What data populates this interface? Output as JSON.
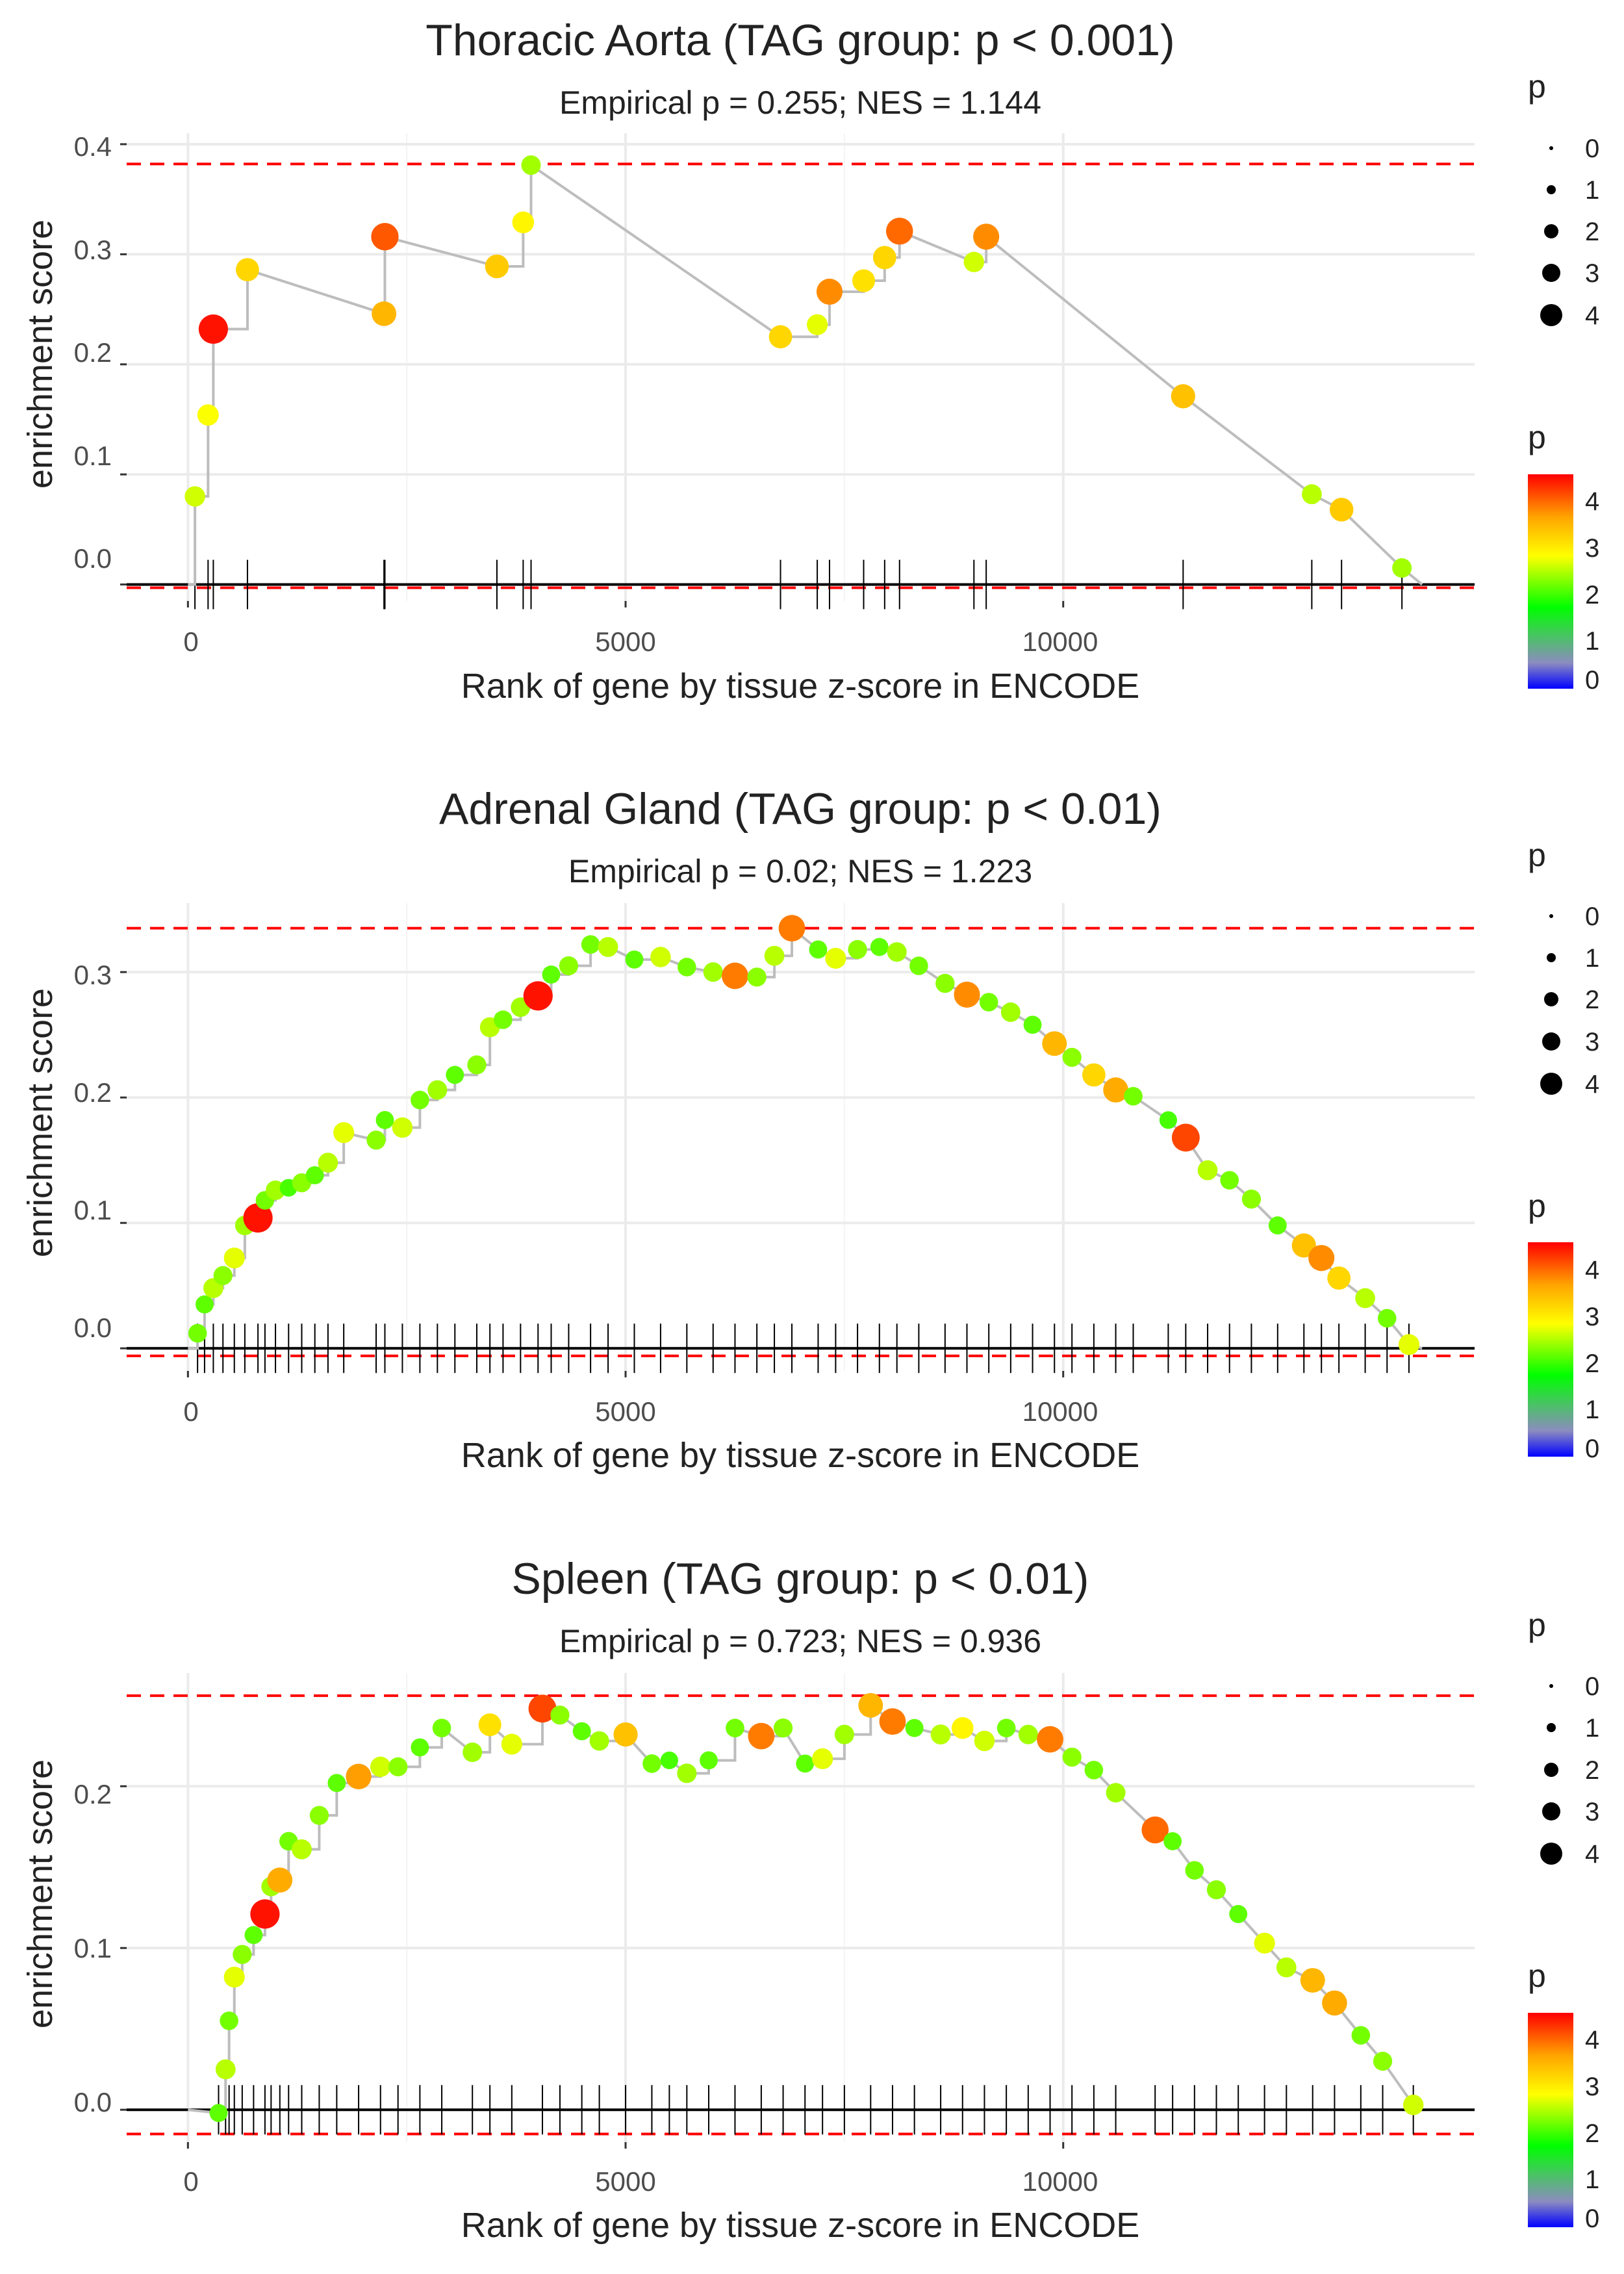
{
  "legend": {
    "size_title": "p",
    "size_labels": [
      "0",
      "1",
      "2",
      "3",
      "4"
    ],
    "color_title": "p",
    "color_labels": [
      "4",
      "3",
      "2",
      "1",
      "0"
    ],
    "color_scale": [
      "#0000ff",
      "#8c8cc0",
      "#00ff00",
      "#ffff00",
      "#ffa500",
      "#ff0000"
    ]
  },
  "colors": {
    "es_line": "#bdbdbd",
    "threshold_line": "#ff0000",
    "hit_tick": "#000000",
    "grid": "#ebebeb"
  },
  "chart_data": [
    {
      "type": "scatter",
      "title": "Thoracic Aorta (TAG group: p < 0.001)",
      "subtitle": "Empirical p = 0.255; NES = 1.144",
      "xlabel": "Rank of gene by tissue z-score in ENCODE",
      "ylabel": "enrichment score",
      "xlim": [
        -700,
        14700
      ],
      "ylim": [
        -0.015,
        0.41
      ],
      "xticks": [
        0,
        5000,
        10000
      ],
      "xtick_labels": [
        "0",
        "5000",
        "10000"
      ],
      "yticks": [
        0.0,
        0.1,
        0.2,
        0.3,
        0.4
      ],
      "ytick_labels": [
        "0.0",
        "0.1",
        "0.2",
        "0.3",
        "0.4"
      ],
      "max_es": 0.382,
      "min_es": -0.003,
      "points": [
        {
          "x": 80,
          "y": 0.08,
          "p": 2.7
        },
        {
          "x": 230,
          "y": 0.154,
          "p": 2.9
        },
        {
          "x": 290,
          "y": 0.232,
          "p": 4.6
        },
        {
          "x": 680,
          "y": 0.286,
          "p": 3.3
        },
        {
          "x": 2240,
          "y": 0.246,
          "p": 3.6
        },
        {
          "x": 2250,
          "y": 0.316,
          "p": 4.2
        },
        {
          "x": 3530,
          "y": 0.289,
          "p": 3.4
        },
        {
          "x": 3830,
          "y": 0.329,
          "p": 3.0
        },
        {
          "x": 3920,
          "y": 0.381,
          "p": 2.5
        },
        {
          "x": 6770,
          "y": 0.225,
          "p": 3.3
        },
        {
          "x": 7190,
          "y": 0.236,
          "p": 2.8
        },
        {
          "x": 7330,
          "y": 0.266,
          "p": 3.9
        },
        {
          "x": 7720,
          "y": 0.276,
          "p": 3.2
        },
        {
          "x": 7960,
          "y": 0.297,
          "p": 3.3
        },
        {
          "x": 8130,
          "y": 0.321,
          "p": 4.1
        },
        {
          "x": 8980,
          "y": 0.293,
          "p": 2.7
        },
        {
          "x": 9120,
          "y": 0.316,
          "p": 3.9
        },
        {
          "x": 11370,
          "y": 0.171,
          "p": 3.5
        },
        {
          "x": 12840,
          "y": 0.082,
          "p": 2.6
        },
        {
          "x": 13180,
          "y": 0.068,
          "p": 3.4
        },
        {
          "x": 13870,
          "y": 0.015,
          "p": 2.5
        }
      ]
    },
    {
      "type": "scatter",
      "title": "Adrenal Gland (TAG group: p < 0.01)",
      "subtitle": "Empirical p = 0.02; NES = 1.223",
      "xlabel": "Rank of gene by tissue z-score in ENCODE",
      "ylabel": "enrichment score",
      "xlim": [
        -700,
        14700
      ],
      "ylim": [
        -0.018,
        0.355
      ],
      "xticks": [
        0,
        5000,
        10000
      ],
      "xtick_labels": [
        "0",
        "5000",
        "10000"
      ],
      "yticks": [
        0.0,
        0.1,
        0.2,
        0.3
      ],
      "ytick_labels": [
        "0.0",
        "0.1",
        "0.2",
        "0.3"
      ],
      "max_es": 0.335,
      "min_es": -0.006,
      "points": [
        {
          "x": 110,
          "y": 0.012,
          "p": 2.3
        },
        {
          "x": 190,
          "y": 0.035,
          "p": 2.2
        },
        {
          "x": 290,
          "y": 0.048,
          "p": 2.6
        },
        {
          "x": 400,
          "y": 0.058,
          "p": 2.4
        },
        {
          "x": 530,
          "y": 0.072,
          "p": 2.8
        },
        {
          "x": 650,
          "y": 0.098,
          "p": 2.5
        },
        {
          "x": 800,
          "y": 0.104,
          "p": 4.6
        },
        {
          "x": 880,
          "y": 0.118,
          "p": 2.3
        },
        {
          "x": 1000,
          "y": 0.126,
          "p": 2.5
        },
        {
          "x": 1150,
          "y": 0.128,
          "p": 2.1
        },
        {
          "x": 1300,
          "y": 0.132,
          "p": 2.4
        },
        {
          "x": 1450,
          "y": 0.138,
          "p": 2.2
        },
        {
          "x": 1600,
          "y": 0.148,
          "p": 2.6
        },
        {
          "x": 1780,
          "y": 0.172,
          "p": 2.8
        },
        {
          "x": 2150,
          "y": 0.166,
          "p": 2.4
        },
        {
          "x": 2250,
          "y": 0.182,
          "p": 2.2
        },
        {
          "x": 2450,
          "y": 0.176,
          "p": 2.7
        },
        {
          "x": 2650,
          "y": 0.198,
          "p": 2.3
        },
        {
          "x": 2850,
          "y": 0.206,
          "p": 2.5
        },
        {
          "x": 3050,
          "y": 0.218,
          "p": 2.2
        },
        {
          "x": 3300,
          "y": 0.226,
          "p": 2.4
        },
        {
          "x": 3450,
          "y": 0.256,
          "p": 2.6
        },
        {
          "x": 3600,
          "y": 0.262,
          "p": 2.3
        },
        {
          "x": 3800,
          "y": 0.272,
          "p": 2.5
        },
        {
          "x": 4000,
          "y": 0.281,
          "p": 4.6
        },
        {
          "x": 4150,
          "y": 0.298,
          "p": 2.2
        },
        {
          "x": 4350,
          "y": 0.305,
          "p": 2.4
        },
        {
          "x": 4600,
          "y": 0.322,
          "p": 2.3
        },
        {
          "x": 4800,
          "y": 0.32,
          "p": 2.6
        },
        {
          "x": 5100,
          "y": 0.31,
          "p": 2.2
        },
        {
          "x": 5400,
          "y": 0.312,
          "p": 2.7
        },
        {
          "x": 5700,
          "y": 0.304,
          "p": 2.3
        },
        {
          "x": 6000,
          "y": 0.3,
          "p": 2.5
        },
        {
          "x": 6250,
          "y": 0.297,
          "p": 4.0
        },
        {
          "x": 6500,
          "y": 0.296,
          "p": 2.4
        },
        {
          "x": 6700,
          "y": 0.313,
          "p": 2.6
        },
        {
          "x": 6900,
          "y": 0.335,
          "p": 4.0
        },
        {
          "x": 7200,
          "y": 0.318,
          "p": 2.2
        },
        {
          "x": 7400,
          "y": 0.311,
          "p": 2.8
        },
        {
          "x": 7650,
          "y": 0.318,
          "p": 2.4
        },
        {
          "x": 7900,
          "y": 0.32,
          "p": 2.2
        },
        {
          "x": 8100,
          "y": 0.316,
          "p": 2.5
        },
        {
          "x": 8350,
          "y": 0.305,
          "p": 2.3
        },
        {
          "x": 8650,
          "y": 0.291,
          "p": 2.4
        },
        {
          "x": 8900,
          "y": 0.282,
          "p": 3.9
        },
        {
          "x": 9150,
          "y": 0.276,
          "p": 2.3
        },
        {
          "x": 9400,
          "y": 0.268,
          "p": 2.5
        },
        {
          "x": 9650,
          "y": 0.258,
          "p": 2.2
        },
        {
          "x": 9900,
          "y": 0.243,
          "p": 3.6
        },
        {
          "x": 10100,
          "y": 0.232,
          "p": 2.4
        },
        {
          "x": 10350,
          "y": 0.218,
          "p": 3.3
        },
        {
          "x": 10600,
          "y": 0.206,
          "p": 3.7
        },
        {
          "x": 10800,
          "y": 0.201,
          "p": 2.3
        },
        {
          "x": 11200,
          "y": 0.182,
          "p": 2.1
        },
        {
          "x": 11400,
          "y": 0.168,
          "p": 4.3
        },
        {
          "x": 11650,
          "y": 0.142,
          "p": 2.6
        },
        {
          "x": 11900,
          "y": 0.134,
          "p": 2.3
        },
        {
          "x": 12150,
          "y": 0.119,
          "p": 2.4
        },
        {
          "x": 12450,
          "y": 0.098,
          "p": 2.2
        },
        {
          "x": 12750,
          "y": 0.082,
          "p": 3.5
        },
        {
          "x": 12950,
          "y": 0.072,
          "p": 3.9
        },
        {
          "x": 13150,
          "y": 0.056,
          "p": 3.3
        },
        {
          "x": 13450,
          "y": 0.04,
          "p": 2.6
        },
        {
          "x": 13700,
          "y": 0.024,
          "p": 2.3
        },
        {
          "x": 13950,
          "y": 0.003,
          "p": 2.8
        }
      ]
    },
    {
      "type": "scatter",
      "title": "Spleen (TAG group: p < 0.01)",
      "subtitle": "Empirical p = 0.723; NES = 0.936",
      "xlabel": "Rank of gene by tissue z-score in ENCODE",
      "ylabel": "enrichment score",
      "xlim": [
        -700,
        14700
      ],
      "ylim": [
        -0.02,
        0.27
      ],
      "xticks": [
        0,
        5000,
        10000
      ],
      "xtick_labels": [
        "0",
        "5000",
        "10000"
      ],
      "yticks": [
        0.0,
        0.1,
        0.2
      ],
      "ytick_labels": [
        "0.0",
        "0.1",
        "0.2"
      ],
      "max_es": 0.256,
      "min_es": -0.015,
      "points": [
        {
          "x": 350,
          "y": -0.002,
          "p": 2.2
        },
        {
          "x": 430,
          "y": 0.025,
          "p": 2.6
        },
        {
          "x": 470,
          "y": 0.055,
          "p": 2.3
        },
        {
          "x": 530,
          "y": 0.082,
          "p": 2.8
        },
        {
          "x": 620,
          "y": 0.096,
          "p": 2.4
        },
        {
          "x": 750,
          "y": 0.108,
          "p": 2.2
        },
        {
          "x": 880,
          "y": 0.121,
          "p": 4.6
        },
        {
          "x": 950,
          "y": 0.138,
          "p": 2.5
        },
        {
          "x": 1050,
          "y": 0.142,
          "p": 3.7
        },
        {
          "x": 1150,
          "y": 0.166,
          "p": 2.3
        },
        {
          "x": 1300,
          "y": 0.161,
          "p": 2.6
        },
        {
          "x": 1500,
          "y": 0.182,
          "p": 2.4
        },
        {
          "x": 1700,
          "y": 0.202,
          "p": 2.2
        },
        {
          "x": 1950,
          "y": 0.206,
          "p": 3.8
        },
        {
          "x": 2200,
          "y": 0.212,
          "p": 2.7
        },
        {
          "x": 2400,
          "y": 0.212,
          "p": 2.4
        },
        {
          "x": 2650,
          "y": 0.224,
          "p": 2.2
        },
        {
          "x": 2900,
          "y": 0.236,
          "p": 2.3
        },
        {
          "x": 3250,
          "y": 0.221,
          "p": 2.5
        },
        {
          "x": 3450,
          "y": 0.238,
          "p": 3.2
        },
        {
          "x": 3700,
          "y": 0.226,
          "p": 2.8
        },
        {
          "x": 4050,
          "y": 0.248,
          "p": 4.3
        },
        {
          "x": 4250,
          "y": 0.244,
          "p": 2.4
        },
        {
          "x": 4500,
          "y": 0.234,
          "p": 2.2
        },
        {
          "x": 4700,
          "y": 0.228,
          "p": 2.5
        },
        {
          "x": 5000,
          "y": 0.232,
          "p": 3.5
        },
        {
          "x": 5300,
          "y": 0.214,
          "p": 2.3
        },
        {
          "x": 5500,
          "y": 0.216,
          "p": 2.1
        },
        {
          "x": 5700,
          "y": 0.208,
          "p": 2.5
        },
        {
          "x": 5950,
          "y": 0.216,
          "p": 2.2
        },
        {
          "x": 6250,
          "y": 0.236,
          "p": 2.3
        },
        {
          "x": 6550,
          "y": 0.231,
          "p": 4.0
        },
        {
          "x": 6800,
          "y": 0.236,
          "p": 2.4
        },
        {
          "x": 7050,
          "y": 0.214,
          "p": 2.2
        },
        {
          "x": 7250,
          "y": 0.217,
          "p": 2.8
        },
        {
          "x": 7500,
          "y": 0.232,
          "p": 2.5
        },
        {
          "x": 7800,
          "y": 0.25,
          "p": 3.6
        },
        {
          "x": 8050,
          "y": 0.24,
          "p": 4.0
        },
        {
          "x": 8300,
          "y": 0.236,
          "p": 2.2
        },
        {
          "x": 8600,
          "y": 0.232,
          "p": 2.6
        },
        {
          "x": 8850,
          "y": 0.236,
          "p": 3.0
        },
        {
          "x": 9100,
          "y": 0.228,
          "p": 2.7
        },
        {
          "x": 9350,
          "y": 0.236,
          "p": 2.3
        },
        {
          "x": 9600,
          "y": 0.232,
          "p": 2.5
        },
        {
          "x": 9850,
          "y": 0.229,
          "p": 4.0
        },
        {
          "x": 10100,
          "y": 0.218,
          "p": 2.4
        },
        {
          "x": 10350,
          "y": 0.21,
          "p": 2.3
        },
        {
          "x": 10600,
          "y": 0.196,
          "p": 2.5
        },
        {
          "x": 11050,
          "y": 0.173,
          "p": 4.1
        },
        {
          "x": 11250,
          "y": 0.166,
          "p": 2.2
        },
        {
          "x": 11500,
          "y": 0.148,
          "p": 2.3
        },
        {
          "x": 11750,
          "y": 0.136,
          "p": 2.4
        },
        {
          "x": 12000,
          "y": 0.121,
          "p": 2.2
        },
        {
          "x": 12300,
          "y": 0.103,
          "p": 2.8
        },
        {
          "x": 12550,
          "y": 0.088,
          "p": 2.6
        },
        {
          "x": 12850,
          "y": 0.08,
          "p": 3.6
        },
        {
          "x": 13100,
          "y": 0.066,
          "p": 3.7
        },
        {
          "x": 13400,
          "y": 0.046,
          "p": 2.3
        },
        {
          "x": 13650,
          "y": 0.03,
          "p": 2.4
        },
        {
          "x": 14000,
          "y": 0.003,
          "p": 2.7
        }
      ]
    }
  ]
}
